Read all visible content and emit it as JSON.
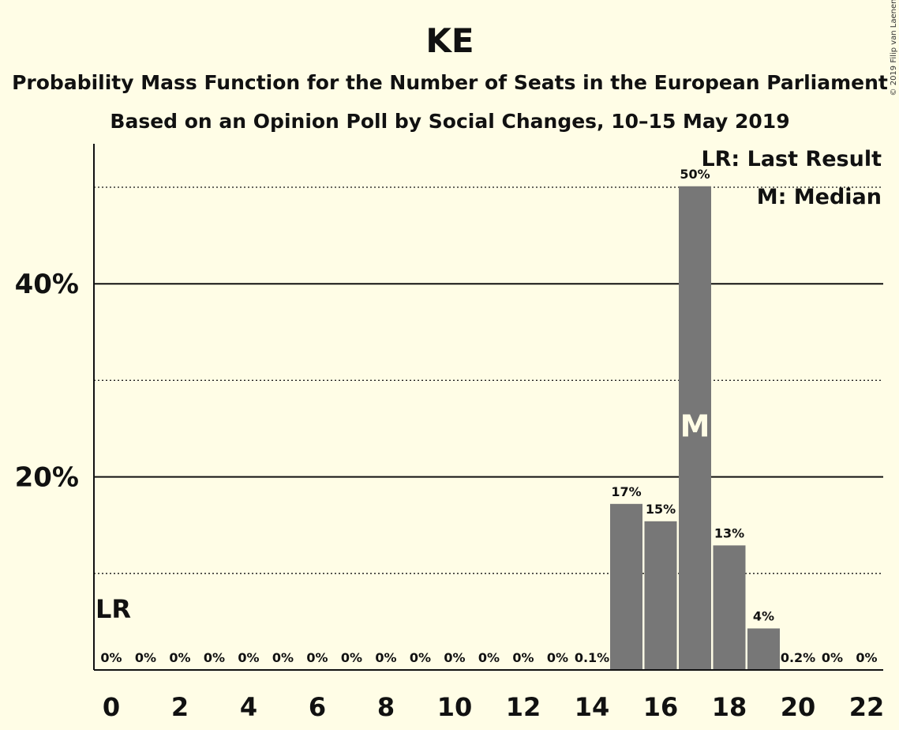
{
  "chart_data": {
    "type": "bar",
    "title": "KE",
    "subtitle": "Probability Mass Function for the Number of Seats in the European Parliament",
    "subtitle2": "Based on an Opinion Poll by Social Changes, 10–15 May 2019",
    "copyright": "© 2019 Filip van Laenen",
    "legend": [
      "LR: Last Result",
      "M: Median"
    ],
    "x": [
      0,
      1,
      2,
      3,
      4,
      5,
      6,
      7,
      8,
      9,
      10,
      11,
      12,
      13,
      14,
      15,
      16,
      17,
      18,
      19,
      20,
      21,
      22
    ],
    "values": [
      0,
      0,
      0,
      0,
      0,
      0,
      0,
      0,
      0,
      0,
      0,
      0,
      0,
      0,
      0.1,
      17.2,
      15.4,
      50.1,
      12.9,
      4.3,
      0.2,
      0,
      0
    ],
    "data_labels": [
      "0%",
      "0%",
      "0%",
      "0%",
      "0%",
      "0%",
      "0%",
      "0%",
      "0%",
      "0%",
      "0%",
      "0%",
      "0%",
      "0%",
      "0.1%",
      "17%",
      "15%",
      "50%",
      "13%",
      "4%",
      "0.2%",
      "0%",
      "0%"
    ],
    "x_ticks": [
      0,
      2,
      4,
      6,
      8,
      10,
      12,
      14,
      16,
      18,
      20,
      22
    ],
    "y_ticks": [
      {
        "value": 20,
        "label": "20%"
      },
      {
        "value": 40,
        "label": "40%"
      }
    ],
    "y_minor_ticks": [
      10,
      30,
      50
    ],
    "ylim": [
      0,
      54.5
    ],
    "last_result": {
      "seats": 0,
      "label": "LR"
    },
    "median": {
      "seats": 17,
      "label": "M"
    },
    "grid": true,
    "legend_position": "top-right"
  }
}
